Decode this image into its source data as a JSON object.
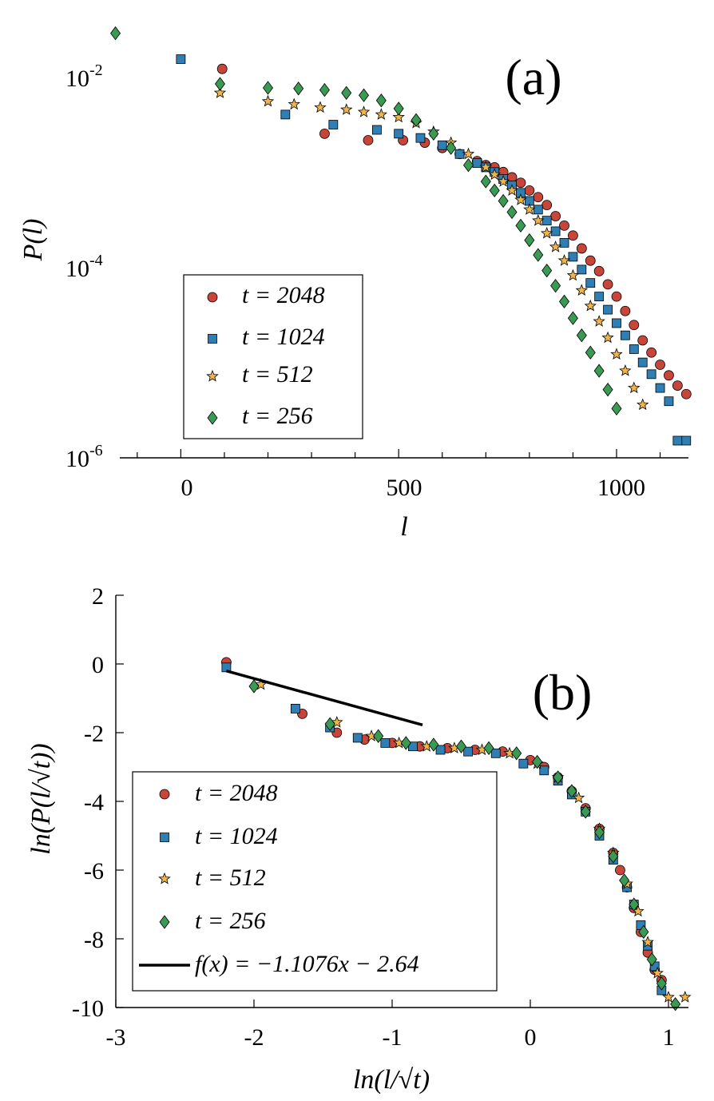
{
  "chart_data": [
    {
      "panel": "(a)",
      "type": "scatter",
      "xlabel": "l",
      "ylabel": "P(l)",
      "yscale": "log",
      "xlim": [
        -140,
        1165
      ],
      "ylim": [
        1e-06,
        0.025
      ],
      "x_ticks": [
        0,
        500,
        1000
      ],
      "x_tick_labels": [
        "0",
        "500",
        "1000"
      ],
      "y_tick_labels": [
        {
          "base": "10",
          "exp": "-2",
          "value": 0.01
        },
        {
          "base": "10",
          "exp": "-4",
          "value": 0.0001
        },
        {
          "base": "10",
          "exp": "-6",
          "value": 1e-06
        }
      ],
      "legend_position": "lower-left",
      "series": [
        {
          "name": "t = 2048",
          "marker": "circle",
          "color": "#c8453a",
          "x": [
            95,
            330,
            430,
            510,
            560,
            600,
            640,
            680,
            700,
            720,
            740,
            760,
            780,
            800,
            820,
            840,
            860,
            880,
            900,
            920,
            940,
            960,
            980,
            1000,
            1020,
            1040,
            1060,
            1080,
            1100,
            1120,
            1140,
            1160
          ],
          "y": [
            0.0097,
            0.0021,
            0.0018,
            0.0018,
            0.0017,
            0.0015,
            0.0013,
            0.0011,
            0.001,
            0.00095,
            0.00085,
            0.00075,
            0.00066,
            0.00055,
            0.00047,
            0.00039,
            0.0003,
            0.00024,
            0.00019,
            0.00014,
            0.000105,
            8.2e-05,
            6e-05,
            4.5e-05,
            3.2e-05,
            2.3e-05,
            1.6e-05,
            1.2e-05,
            9e-06,
            7e-06,
            5.5e-06,
            4.5e-06
          ]
        },
        {
          "name": "t = 1024",
          "marker": "square",
          "color": "#2f7fb4",
          "x": [
            0,
            240,
            350,
            450,
            500,
            550,
            600,
            640,
            680,
            700,
            720,
            740,
            760,
            780,
            800,
            820,
            840,
            860,
            880,
            900,
            920,
            940,
            960,
            980,
            1000,
            1020,
            1040,
            1060,
            1080,
            1100,
            1120,
            1140,
            1160
          ],
          "y": [
            0.0122,
            0.0033,
            0.0026,
            0.0023,
            0.0021,
            0.0019,
            0.0016,
            0.0013,
            0.00105,
            0.00095,
            0.00085,
            0.00072,
            0.00062,
            0.00052,
            0.00043,
            0.00035,
            0.00027,
            0.00021,
            0.00016,
            0.000115,
            8.5e-05,
            6.2e-05,
            4.5e-05,
            3.3e-05,
            2.4e-05,
            1.8e-05,
            1.3e-05,
            9.5e-06,
            7.2e-06,
            5.2e-06,
            3.8e-06,
            1.5e-06,
            1.5e-06
          ]
        },
        {
          "name": "t = 512",
          "marker": "star",
          "color": "#f0b44a",
          "x": [
            90,
            200,
            260,
            320,
            380,
            420,
            460,
            500,
            540,
            580,
            620,
            660,
            700,
            720,
            740,
            760,
            780,
            800,
            820,
            840,
            860,
            880,
            900,
            920,
            940,
            960,
            980,
            1000,
            1020,
            1040,
            1060
          ],
          "y": [
            0.0055,
            0.0045,
            0.0042,
            0.0039,
            0.0037,
            0.0035,
            0.0033,
            0.0031,
            0.0027,
            0.0022,
            0.0017,
            0.0013,
            0.00095,
            0.0008,
            0.00068,
            0.00055,
            0.00044,
            0.00035,
            0.00027,
            0.0002,
            0.000145,
            0.000105,
            7.4e-05,
            5.2e-05,
            3.6e-05,
            2.5e-05,
            1.7e-05,
            1.15e-05,
            7.8e-06,
            5.2e-06,
            3.5e-06
          ]
        },
        {
          "name": "t = 256",
          "marker": "diamond",
          "color": "#3a9a53",
          "x": [
            -150,
            90,
            200,
            270,
            330,
            380,
            420,
            460,
            500,
            540,
            580,
            620,
            660,
            700,
            720,
            740,
            760,
            780,
            800,
            820,
            840,
            860,
            880,
            900,
            920,
            940,
            960,
            980,
            1000
          ],
          "y": [
            0.0225,
            0.0068,
            0.0062,
            0.0061,
            0.0059,
            0.0055,
            0.0052,
            0.0046,
            0.0038,
            0.0029,
            0.0021,
            0.0015,
            0.001,
            0.00068,
            0.00055,
            0.00043,
            0.00033,
            0.00024,
            0.00017,
            0.00012,
            8.3e-05,
            5.8e-05,
            4e-05,
            2.7e-05,
            1.8e-05,
            1.2e-05,
            7.8e-06,
            5e-06,
            3.2e-06
          ]
        }
      ]
    },
    {
      "panel": "(b)",
      "type": "scatter",
      "xlabel": "ln(l/√t)",
      "ylabel": "ln(P(l/√t))",
      "xlim": [
        -3,
        1.2
      ],
      "ylim": [
        -10,
        2
      ],
      "x_ticks": [
        -3,
        -2,
        -1,
        0,
        1
      ],
      "x_tick_labels": [
        "-3",
        "-2",
        "-1",
        "0",
        "1"
      ],
      "y_ticks": [
        2,
        0,
        -2,
        -4,
        -6,
        -8,
        -10
      ],
      "y_tick_labels": [
        "2",
        "0",
        "-2",
        "-4",
        "-6",
        "-8",
        "-10"
      ],
      "legend_position": "lower-left",
      "fit_line": {
        "label": "f(x) = −1.1076x − 2.64",
        "slope": -1.1076,
        "intercept": -2.64,
        "x_range": [
          -2.2,
          -0.78
        ],
        "color": "#000000"
      },
      "series": [
        {
          "name": "t = 2048",
          "marker": "circle",
          "color": "#c8453a",
          "x": [
            -2.2,
            -1.65,
            -1.4,
            -1.2,
            -1.0,
            -0.8,
            -0.6,
            -0.4,
            -0.2,
            0.0,
            0.1,
            0.2,
            0.3,
            0.4,
            0.5,
            0.6,
            0.65,
            0.7,
            0.75,
            0.8,
            0.85,
            0.9,
            0.95
          ],
          "y": [
            0.05,
            -1.45,
            -2.0,
            -2.2,
            -2.3,
            -2.4,
            -2.45,
            -2.5,
            -2.55,
            -2.8,
            -3.0,
            -3.3,
            -3.7,
            -4.2,
            -4.8,
            -5.5,
            -6.0,
            -6.5,
            -7.1,
            -7.8,
            -8.4,
            -8.9,
            -9.2
          ]
        },
        {
          "name": "t = 1024",
          "marker": "square",
          "color": "#2f7fb4",
          "x": [
            -2.2,
            -1.7,
            -1.45,
            -1.25,
            -1.05,
            -0.85,
            -0.65,
            -0.45,
            -0.25,
            -0.05,
            0.1,
            0.2,
            0.3,
            0.4,
            0.5,
            0.6,
            0.7,
            0.75,
            0.8,
            0.85,
            0.9,
            0.95
          ],
          "y": [
            -0.1,
            -1.3,
            -1.85,
            -2.15,
            -2.3,
            -2.4,
            -2.5,
            -2.55,
            -2.6,
            -2.9,
            -3.1,
            -3.4,
            -3.8,
            -4.3,
            -5.0,
            -5.7,
            -6.5,
            -7.0,
            -7.6,
            -8.2,
            -8.8,
            -9.5
          ]
        },
        {
          "name": "t = 512",
          "marker": "star",
          "color": "#f0b44a",
          "x": [
            -1.95,
            -1.4,
            -1.15,
            -0.95,
            -0.75,
            -0.55,
            -0.35,
            -0.15,
            0.05,
            0.2,
            0.35,
            0.5,
            0.6,
            0.7,
            0.78,
            0.85,
            0.92,
            1.0,
            1.12
          ],
          "y": [
            -0.6,
            -1.7,
            -2.1,
            -2.3,
            -2.4,
            -2.45,
            -2.5,
            -2.6,
            -2.9,
            -3.3,
            -3.9,
            -4.8,
            -5.5,
            -6.4,
            -7.2,
            -8.1,
            -9.0,
            -9.7,
            -9.7
          ]
        },
        {
          "name": "t = 256",
          "marker": "diamond",
          "color": "#3a9a53",
          "x": [
            -2.0,
            -1.45,
            -1.1,
            -0.9,
            -0.7,
            -0.5,
            -0.3,
            -0.1,
            0.05,
            0.2,
            0.3,
            0.4,
            0.5,
            0.6,
            0.68,
            0.75,
            0.82,
            0.88,
            0.95,
            1.05
          ],
          "y": [
            -0.65,
            -1.75,
            -2.1,
            -2.3,
            -2.35,
            -2.4,
            -2.45,
            -2.6,
            -2.85,
            -3.3,
            -3.7,
            -4.3,
            -4.9,
            -5.6,
            -6.3,
            -7.0,
            -7.8,
            -8.6,
            -9.3,
            -9.9
          ]
        }
      ]
    }
  ],
  "panel_a": {
    "label": "(a)",
    "xlabel": "l",
    "ylabel": "P(l)",
    "legend": [
      "t = 2048",
      "t = 1024",
      "t = 512",
      "t = 256"
    ]
  },
  "panel_b": {
    "label": "(b)",
    "xlabel": "ln(l/√t)",
    "ylabel": "ln(P(l/√t))",
    "legend": [
      "t = 2048",
      "t = 1024",
      "t = 512",
      "t = 256",
      "f(x) = −1.1076x − 2.64"
    ]
  }
}
